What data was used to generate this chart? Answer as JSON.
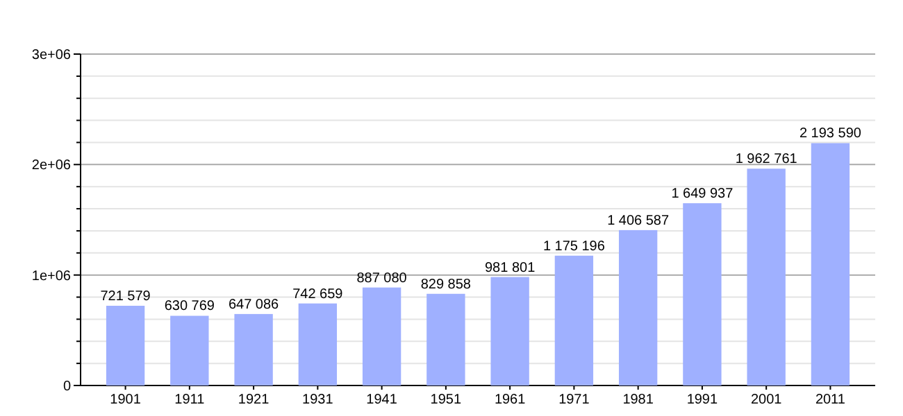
{
  "chart_data": {
    "type": "bar",
    "categories": [
      "1901",
      "1911",
      "1921",
      "1931",
      "1941",
      "1951",
      "1961",
      "1971",
      "1981",
      "1991",
      "2001",
      "2011"
    ],
    "values": [
      721579,
      630769,
      647086,
      742659,
      887080,
      829858,
      981801,
      1175196,
      1406587,
      1649937,
      1962761,
      2193590
    ],
    "value_labels": [
      "721 579",
      "630 769",
      "647 086",
      "742 659",
      "887 080",
      "829 858",
      "981 801",
      "1 175 196",
      "1 406 587",
      "1 649 937",
      "1 962 761",
      "2 193 590"
    ],
    "color": "#9fb0ff",
    "ylim": [
      0,
      3000000
    ],
    "yticks": [
      {
        "value": 0,
        "label": "0"
      },
      {
        "value": 200000,
        "label": null
      },
      {
        "value": 400000,
        "label": null
      },
      {
        "value": 600000,
        "label": null
      },
      {
        "value": 800000,
        "label": null
      },
      {
        "value": 1000000,
        "label": "1e+06"
      },
      {
        "value": 1200000,
        "label": null
      },
      {
        "value": 1400000,
        "label": null
      },
      {
        "value": 1600000,
        "label": null
      },
      {
        "value": 1800000,
        "label": null
      },
      {
        "value": 2000000,
        "label": "2e+06"
      },
      {
        "value": 2200000,
        "label": null
      },
      {
        "value": 2400000,
        "label": null
      },
      {
        "value": 2600000,
        "label": null
      },
      {
        "value": 2800000,
        "label": null
      },
      {
        "value": 3000000,
        "label": "3e+06"
      }
    ],
    "grid": true
  }
}
